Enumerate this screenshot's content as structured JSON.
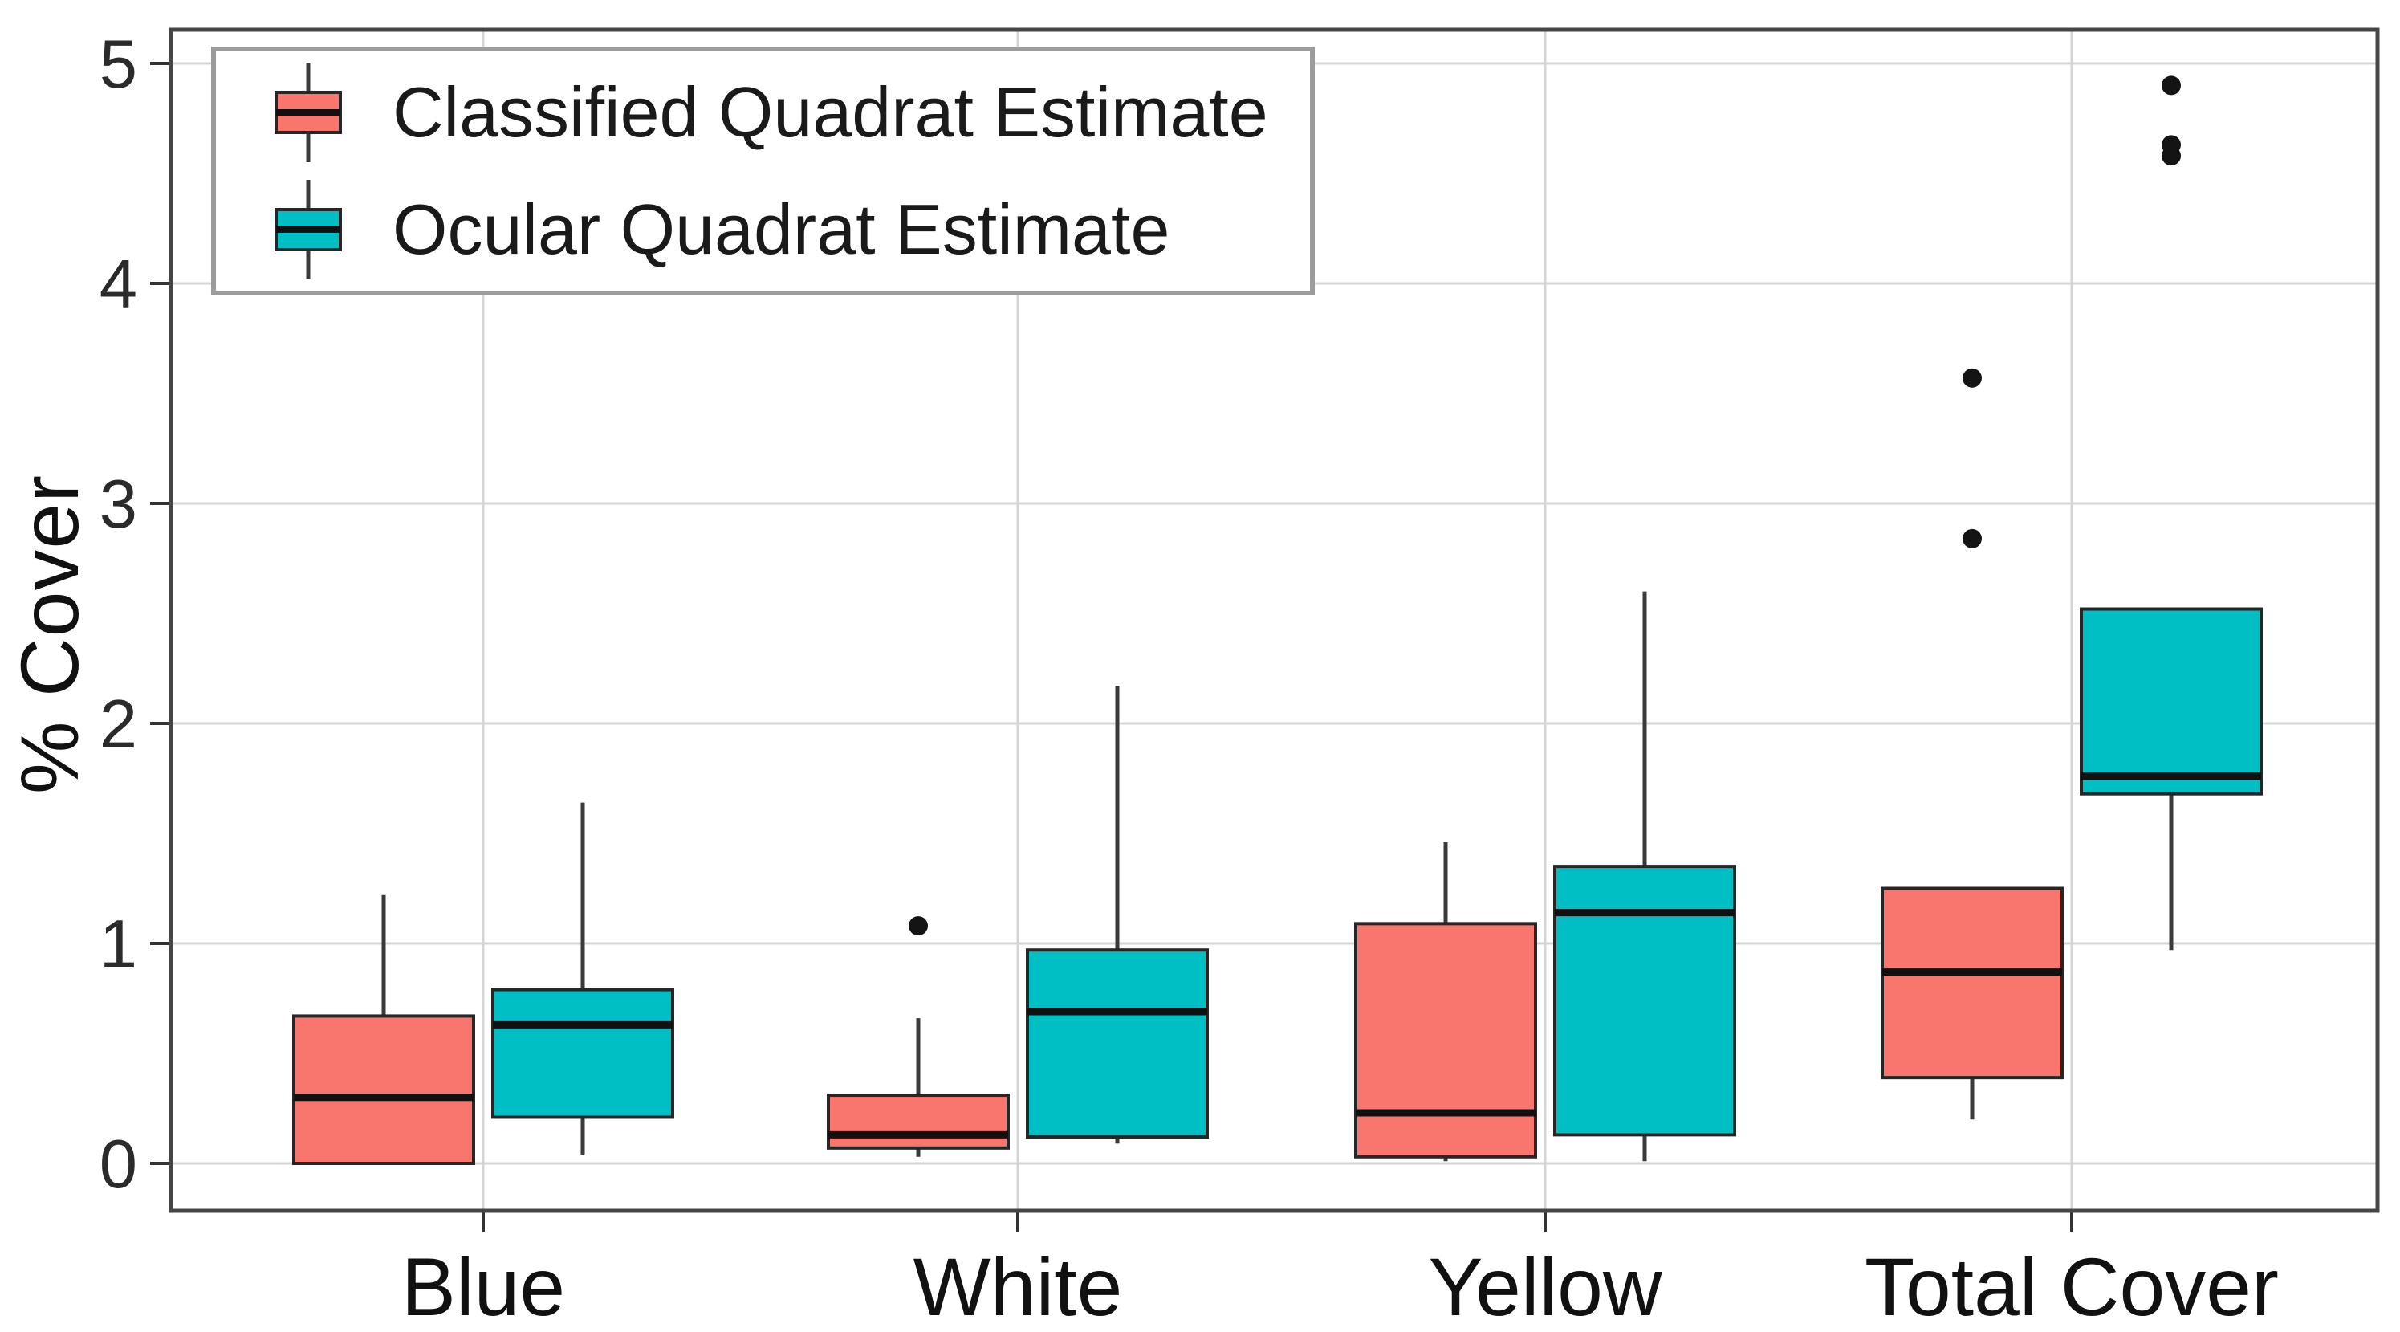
{
  "figure": {
    "background": "#ffffff",
    "note": "grouped boxplot comparing quadrat cover estimates"
  },
  "chart_data": {
    "type": "boxplot",
    "title": "",
    "xlabel": "",
    "ylabel": "% Cover",
    "categories": [
      "Blue",
      "White",
      "Yellow",
      "Total Cover"
    ],
    "y_ticks": [
      0,
      1,
      2,
      3,
      4,
      5
    ],
    "ylim": [
      -0.23,
      5.15
    ],
    "grid": "major horizontal and vertical light-gray gridlines on white panel with dark border",
    "legend_position": "top-left inside panel",
    "series": [
      {
        "name": "Classified Quadrat Estimate",
        "color": "#F8766D",
        "boxes": [
          {
            "category": "Blue",
            "whisker_low": 0.0,
            "q1": 0.0,
            "median": 0.3,
            "q3": 0.67,
            "whisker_high": 1.22,
            "outliers": []
          },
          {
            "category": "White",
            "whisker_low": 0.03,
            "q1": 0.07,
            "median": 0.13,
            "q3": 0.31,
            "whisker_high": 0.66,
            "outliers": [
              1.08
            ]
          },
          {
            "category": "Yellow",
            "whisker_low": 0.01,
            "q1": 0.03,
            "median": 0.23,
            "q3": 1.09,
            "whisker_high": 1.46,
            "outliers": []
          },
          {
            "category": "Total Cover",
            "whisker_low": 0.2,
            "q1": 0.39,
            "median": 0.87,
            "q3": 1.25,
            "whisker_high": 1.25,
            "outliers": [
              2.84,
              3.57
            ]
          }
        ]
      },
      {
        "name": "Ocular Quadrat Estimate",
        "color": "#00BFC4",
        "boxes": [
          {
            "category": "Blue",
            "whisker_low": 0.04,
            "q1": 0.21,
            "median": 0.63,
            "q3": 0.79,
            "whisker_high": 1.64,
            "outliers": []
          },
          {
            "category": "White",
            "whisker_low": 0.09,
            "q1": 0.12,
            "median": 0.69,
            "q3": 0.97,
            "whisker_high": 2.17,
            "outliers": []
          },
          {
            "category": "Yellow",
            "whisker_low": 0.01,
            "q1": 0.13,
            "median": 1.14,
            "q3": 1.35,
            "whisker_high": 2.6,
            "outliers": []
          },
          {
            "category": "Total Cover",
            "whisker_low": 0.97,
            "q1": 1.68,
            "median": 1.76,
            "q3": 2.52,
            "whisker_high": 2.52,
            "outliers": [
              4.58,
              4.63,
              4.9
            ]
          }
        ]
      }
    ]
  },
  "colors": {
    "classified": "#F8766D",
    "ocular": "#00BFC4",
    "box_border": "#262626",
    "median": "#111111",
    "whisker": "#3a3a3a",
    "outlier": "#141414",
    "gridline": "#d5d5d5",
    "panel_border": "#454545",
    "tick": "#333333",
    "tick_text": "#2b2b2b",
    "axis_text": "#111111",
    "legend_border": "#9c9c9c"
  }
}
